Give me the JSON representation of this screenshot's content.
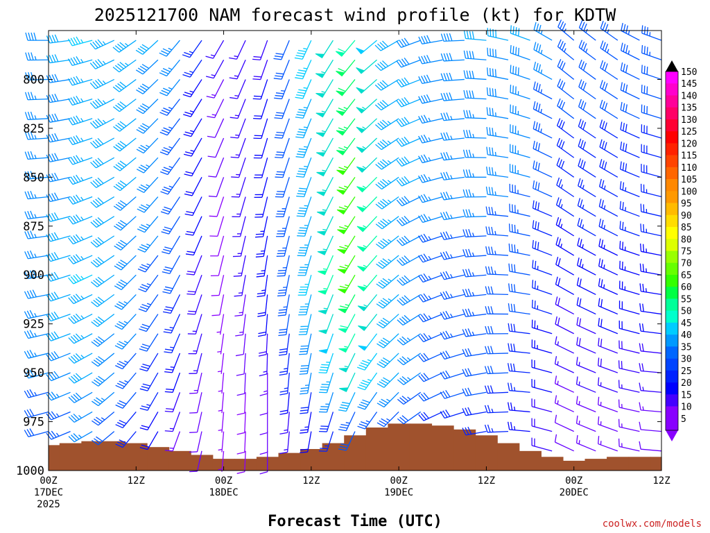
{
  "chart_data": {
    "type": "wind-barb-time-height",
    "title": "2025121700 NAM forecast wind profile (kt) for KDTW",
    "xlabel": "Forecast Time (UTC)",
    "ylabel": "",
    "credit": "coolwx.com/models",
    "x_range_hours": [
      0,
      84
    ],
    "x_step_hours": 3,
    "y_range_hpa": [
      1000,
      775
    ],
    "y_levels_hpa": [
      780,
      790,
      800,
      810,
      820,
      830,
      840,
      850,
      860,
      870,
      880,
      890,
      900,
      910,
      920,
      930,
      940,
      950,
      960,
      970,
      980,
      990,
      1000
    ],
    "y_ticks": [
      {
        "value": 800,
        "label": "800"
      },
      {
        "value": 825,
        "label": "825"
      },
      {
        "value": 850,
        "label": "850"
      },
      {
        "value": 875,
        "label": "875"
      },
      {
        "value": 900,
        "label": "900"
      },
      {
        "value": 925,
        "label": "925"
      },
      {
        "value": 950,
        "label": "950"
      },
      {
        "value": 975,
        "label": "975"
      },
      {
        "value": 1000,
        "label": "1000"
      }
    ],
    "x_ticks": [
      {
        "hour": 0,
        "lines": [
          "00Z",
          "17DEC",
          "2025"
        ]
      },
      {
        "hour": 12,
        "lines": [
          "12Z"
        ]
      },
      {
        "hour": 24,
        "lines": [
          "00Z",
          "18DEC"
        ]
      },
      {
        "hour": 36,
        "lines": [
          "12Z"
        ]
      },
      {
        "hour": 48,
        "lines": [
          "00Z",
          "19DEC"
        ]
      },
      {
        "hour": 60,
        "lines": [
          "12Z"
        ]
      },
      {
        "hour": 72,
        "lines": [
          "00Z",
          "20DEC"
        ]
      },
      {
        "hour": 84,
        "lines": [
          "12Z"
        ]
      }
    ],
    "surface_pressure_hpa": {
      "hours": [
        0,
        3,
        6,
        9,
        12,
        15,
        18,
        21,
        24,
        27,
        30,
        33,
        36,
        39,
        42,
        45,
        48,
        51,
        54,
        57,
        60,
        63,
        66,
        69,
        72,
        75,
        78,
        81,
        84
      ],
      "values": [
        987,
        986,
        985,
        985,
        986,
        988,
        990,
        992,
        994,
        994,
        993,
        991,
        989,
        986,
        982,
        978,
        976,
        976,
        977,
        979,
        982,
        986,
        990,
        993,
        995,
        994,
        993,
        993,
        993
      ]
    },
    "terrain_color": "#a0522d",
    "wind_speed_kt": {
      "hours": [
        0,
        6,
        12,
        18,
        24,
        30,
        36,
        42,
        48,
        54,
        60,
        66,
        72,
        78,
        84
      ],
      "levels_hpa": [
        780,
        800,
        850,
        900,
        950,
        975
      ],
      "values": [
        [
          38,
          45,
          44,
          36,
          16,
          18,
          45,
          58,
          40,
          38,
          40,
          40,
          34,
          34,
          34
        ],
        [
          35,
          44,
          42,
          35,
          14,
          20,
          45,
          62,
          42,
          38,
          38,
          38,
          32,
          32,
          32
        ],
        [
          35,
          44,
          40,
          33,
          10,
          22,
          42,
          66,
          44,
          36,
          36,
          35,
          28,
          28,
          28
        ],
        [
          38,
          45,
          38,
          30,
          8,
          24,
          45,
          66,
          44,
          34,
          34,
          32,
          22,
          24,
          24
        ],
        [
          36,
          42,
          34,
          22,
          6,
          14,
          36,
          50,
          40,
          32,
          32,
          28,
          16,
          18,
          18
        ],
        [
          30,
          36,
          28,
          14,
          6,
          10,
          20,
          30,
          32,
          28,
          28,
          24,
          12,
          14,
          12
        ]
      ]
    },
    "wind_dir_deg": {
      "hours": [
        0,
        6,
        12,
        18,
        24,
        30,
        36,
        42,
        48,
        54,
        60,
        66,
        72,
        78,
        84
      ],
      "levels_hpa": [
        780,
        850,
        950
      ],
      "values": [
        [
          270,
          255,
          235,
          220,
          210,
          200,
          205,
          220,
          240,
          260,
          275,
          290,
          310,
          305,
          290
        ],
        [
          265,
          250,
          230,
          215,
          200,
          195,
          200,
          215,
          235,
          255,
          270,
          285,
          305,
          300,
          285
        ],
        [
          255,
          240,
          220,
          200,
          185,
          180,
          190,
          205,
          225,
          245,
          260,
          275,
          295,
          290,
          275
        ]
      ]
    },
    "colorbar": {
      "labels": [
        "150",
        "145",
        "140",
        "135",
        "130",
        "125",
        "120",
        "115",
        "110",
        "105",
        "100",
        "95",
        "90",
        "85",
        "80",
        "75",
        "70",
        "65",
        "60",
        "55",
        "50",
        "45",
        "40",
        "35",
        "30",
        "25",
        "20",
        "15",
        "10",
        "5"
      ],
      "colors_top_to_bottom": [
        "#ff00ff",
        "#ff00cc",
        "#ff0099",
        "#ff0066",
        "#ff0033",
        "#ff0000",
        "#ff2200",
        "#ff4400",
        "#ff6600",
        "#ff8800",
        "#ff9900",
        "#ffbb00",
        "#ffdd00",
        "#ffff00",
        "#ddff00",
        "#99ff00",
        "#66ff00",
        "#33ff00",
        "#00ff44",
        "#00ff99",
        "#00ffcc",
        "#00ccff",
        "#0099ff",
        "#0066ff",
        "#0044ff",
        "#0022ff",
        "#0000ff",
        "#4400ff",
        "#8800ff",
        "#8800ff"
      ],
      "top_arrow_color": "#000000",
      "bottom_arrow_color": "#8800ff"
    },
    "speed_colors": {
      "breaks_kt": [
        5,
        10,
        15,
        20,
        25,
        30,
        35,
        40,
        45,
        50,
        55,
        60,
        65,
        70,
        75,
        80
      ],
      "colors": [
        "#8800ff",
        "#6600ff",
        "#3300ff",
        "#0000ff",
        "#0022ff",
        "#0055ff",
        "#0088ff",
        "#00aaff",
        "#00ccff",
        "#00ddcc",
        "#00ffaa",
        "#00ff66",
        "#33ff00",
        "#66ff00",
        "#99ff00",
        "#ccff00"
      ]
    }
  }
}
